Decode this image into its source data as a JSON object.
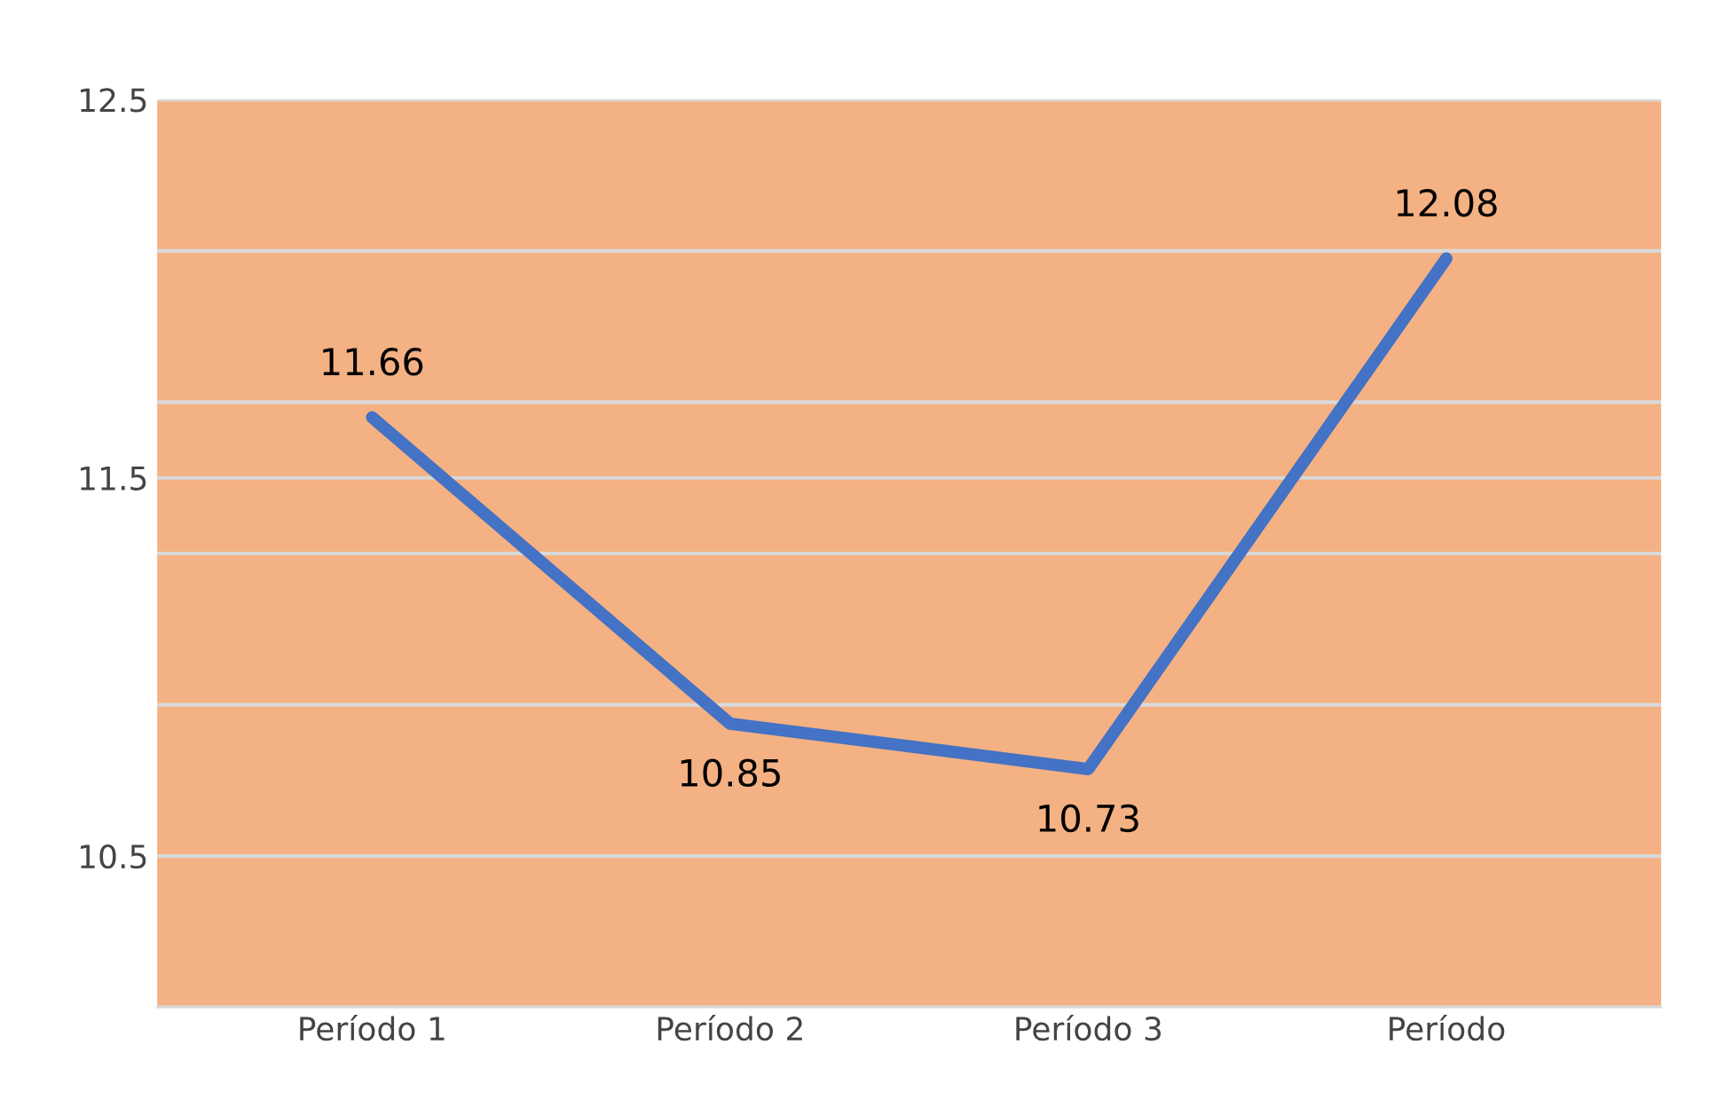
{
  "chart_data": {
    "type": "line",
    "categories": [
      "Período 1",
      "Período 2",
      "Período 3",
      "Período"
    ],
    "series": [
      {
        "color": "#4472c4",
        "values": [
          11.66,
          10.85,
          10.73,
          12.08
        ]
      }
    ],
    "data_labels": true,
    "ylim": [
      10.1,
      12.5
    ],
    "yticks": [
      12.5,
      {
        "value": 12.1,
        "label": null
      },
      {
        "value": 11.7,
        "label": null
      },
      11.5,
      {
        "value": 11.3,
        "label": null
      },
      {
        "value": 10.9,
        "label": null
      },
      10.5,
      {
        "value": 10.1,
        "label": null
      }
    ],
    "grid": "y",
    "legend": false,
    "marker": "none",
    "line_style": "solid"
  }
}
